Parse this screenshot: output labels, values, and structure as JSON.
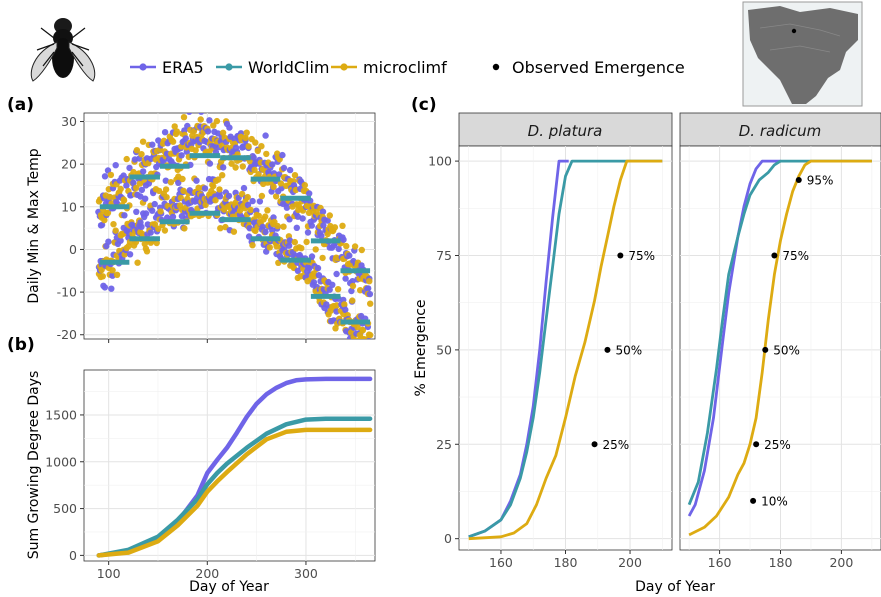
{
  "colors": {
    "ERA5": "#6f64e8",
    "WorldClim": "#3a9aa6",
    "microclimf": "#ddab12",
    "observed": "#000000"
  },
  "icons": {
    "fly": "fly-icon",
    "inset_map": "north-america-map-icon"
  },
  "legend": {
    "items": [
      {
        "label": "ERA5",
        "color": "#6f64e8",
        "shape": "line-point"
      },
      {
        "label": "WorldClim",
        "color": "#3a9aa6",
        "shape": "line-point"
      },
      {
        "label": "microclimf",
        "color": "#ddab12",
        "shape": "line-point"
      },
      {
        "label": "Observed Emergence",
        "color": "#000000",
        "shape": "point"
      }
    ]
  },
  "chart_data": [
    {
      "panel": "(a)",
      "type": "scatter",
      "ylabel": "Daily Min & Max Temp",
      "xlabel": "",
      "xlim": [
        75,
        370
      ],
      "ylim": [
        -21,
        32
      ],
      "yticks": [
        "-20",
        "-10",
        "0",
        "10",
        "20",
        "30"
      ],
      "ytick_values": [
        -20,
        -10,
        0,
        10,
        20,
        30
      ],
      "xtick_values": [
        100,
        200,
        300
      ],
      "grid": true,
      "series": [
        {
          "name": "ERA5",
          "description": "daily min and max temperatures, scatter"
        },
        {
          "name": "microclimf",
          "description": "daily min and max temperatures, scatter"
        },
        {
          "name": "WorldClim",
          "description": "monthly min and max temperature steps",
          "monthly_max": [
            10.0,
            17.0,
            19.5,
            22.0,
            21.5,
            16.5,
            12.0,
            2.0,
            -5.0
          ],
          "monthly_min": [
            -3.0,
            2.5,
            6.5,
            8.5,
            7.0,
            2.5,
            -2.5,
            -11.0,
            -17.0
          ],
          "month_starts": [
            91,
            121,
            152,
            182,
            213,
            244,
            274,
            305,
            335,
            365
          ]
        }
      ]
    },
    {
      "panel": "(b)",
      "type": "line",
      "ylabel": "Sum Growing Degree Days",
      "xlabel": "Day of Year",
      "xlim": [
        75,
        370
      ],
      "ylim": [
        -60,
        1980
      ],
      "xticks": [
        "100",
        "200",
        "300"
      ],
      "xtick_values": [
        100,
        200,
        300
      ],
      "yticks": [
        "0",
        "500",
        "1000",
        "1500"
      ],
      "ytick_values": [
        0,
        500,
        1000,
        1500
      ],
      "grid": true,
      "series": [
        {
          "name": "ERA5",
          "x": [
            90,
            120,
            150,
            170,
            190,
            200,
            210,
            220,
            230,
            240,
            250,
            260,
            270,
            280,
            290,
            300,
            320,
            365
          ],
          "values": [
            0,
            40,
            180,
            360,
            640,
            880,
            1020,
            1150,
            1310,
            1480,
            1620,
            1720,
            1790,
            1840,
            1870,
            1880,
            1885,
            1885
          ]
        },
        {
          "name": "WorldClim",
          "x": [
            90,
            120,
            150,
            170,
            190,
            200,
            210,
            220,
            240,
            260,
            280,
            300,
            320,
            365
          ],
          "values": [
            0,
            60,
            200,
            380,
            600,
            760,
            880,
            980,
            1150,
            1300,
            1400,
            1450,
            1460,
            1460
          ]
        },
        {
          "name": "microclimf",
          "x": [
            90,
            120,
            150,
            170,
            190,
            200,
            210,
            220,
            240,
            260,
            280,
            300,
            320,
            365
          ],
          "values": [
            0,
            30,
            150,
            320,
            530,
            680,
            790,
            890,
            1080,
            1240,
            1320,
            1340,
            1340,
            1340
          ]
        }
      ]
    },
    {
      "panel": "(c)",
      "facet": "D. platura",
      "type": "line",
      "ylabel": "% Emergence",
      "xlabel": "Day of Year",
      "xlim": [
        147,
        213
      ],
      "ylim": [
        -3,
        104
      ],
      "xticks": [
        "160",
        "180",
        "200"
      ],
      "xtick_values": [
        160,
        180,
        200
      ],
      "yticks": [
        "0",
        "25",
        "50",
        "75",
        "100"
      ],
      "ytick_values": [
        0,
        25,
        50,
        75,
        100
      ],
      "grid": true,
      "series": [
        {
          "name": "ERA5",
          "x": [
            150,
            155,
            160,
            163,
            166,
            168,
            170,
            172,
            174,
            176,
            178,
            179,
            181
          ],
          "values": [
            0.5,
            2,
            5,
            10,
            17,
            25,
            35,
            50,
            68,
            85,
            100,
            100,
            100
          ]
        },
        {
          "name": "WorldClim",
          "x": [
            150,
            155,
            160,
            163,
            166,
            168,
            170,
            172,
            174,
            176,
            178,
            180,
            182,
            184,
            210
          ],
          "values": [
            0.5,
            2,
            5,
            9,
            16,
            23,
            32,
            44,
            58,
            72,
            86,
            96,
            100,
            100,
            100
          ]
        },
        {
          "name": "microclimf",
          "x": [
            150,
            160,
            164,
            168,
            171,
            174,
            177,
            180,
            183,
            186,
            189,
            191,
            193,
            195,
            197,
            199,
            200,
            210
          ],
          "values": [
            0,
            0.5,
            1.5,
            4,
            9,
            16,
            22,
            32,
            43,
            52,
            63,
            72,
            80,
            88,
            95,
            100,
            100,
            100
          ]
        },
        {
          "name": "Observed Emergence",
          "type": "scatter",
          "points": [
            {
              "x": 189,
              "y": 25,
              "label": "25%"
            },
            {
              "x": 193,
              "y": 50,
              "label": "50%"
            },
            {
              "x": 197,
              "y": 75,
              "label": "75%"
            }
          ]
        }
      ]
    },
    {
      "panel": "(c)",
      "facet": "D. radicum",
      "type": "line",
      "ylabel": "% Emergence",
      "xlabel": "Day of Year",
      "xlim": [
        147,
        213
      ],
      "ylim": [
        -3,
        104
      ],
      "xticks": [
        "160",
        "180",
        "200"
      ],
      "xtick_values": [
        160,
        180,
        200
      ],
      "grid": true,
      "series": [
        {
          "name": "ERA5",
          "x": [
            150,
            152,
            155,
            158,
            161,
            163,
            166,
            168,
            170,
            172,
            174,
            176,
            178,
            180
          ],
          "values": [
            6,
            9,
            18,
            32,
            52,
            65,
            80,
            88,
            94,
            98,
            100,
            100,
            100,
            100
          ]
        },
        {
          "name": "WorldClim",
          "x": [
            150,
            153,
            156,
            159,
            161,
            163,
            166,
            168,
            170,
            173,
            176,
            178,
            180,
            182,
            184,
            210
          ],
          "values": [
            9,
            15,
            28,
            45,
            58,
            70,
            80,
            86,
            91,
            95,
            97,
            99,
            100,
            100,
            100,
            100
          ]
        },
        {
          "name": "microclimf",
          "x": [
            150,
            155,
            159,
            163,
            166,
            168,
            170,
            172,
            174,
            176,
            178,
            180,
            182,
            184,
            186,
            188,
            190,
            210
          ],
          "values": [
            1,
            3,
            6,
            11,
            17,
            20,
            25,
            32,
            44,
            58,
            70,
            79,
            86,
            92,
            96,
            99,
            100,
            100
          ]
        },
        {
          "name": "Observed Emergence",
          "type": "scatter",
          "points": [
            {
              "x": 171,
              "y": 10,
              "label": "10%"
            },
            {
              "x": 172,
              "y": 25,
              "label": "25%"
            },
            {
              "x": 175,
              "y": 50,
              "label": "50%"
            },
            {
              "x": 178,
              "y": 75,
              "label": "75%"
            },
            {
              "x": 186,
              "y": 95,
              "label": "95%"
            }
          ]
        }
      ]
    }
  ]
}
